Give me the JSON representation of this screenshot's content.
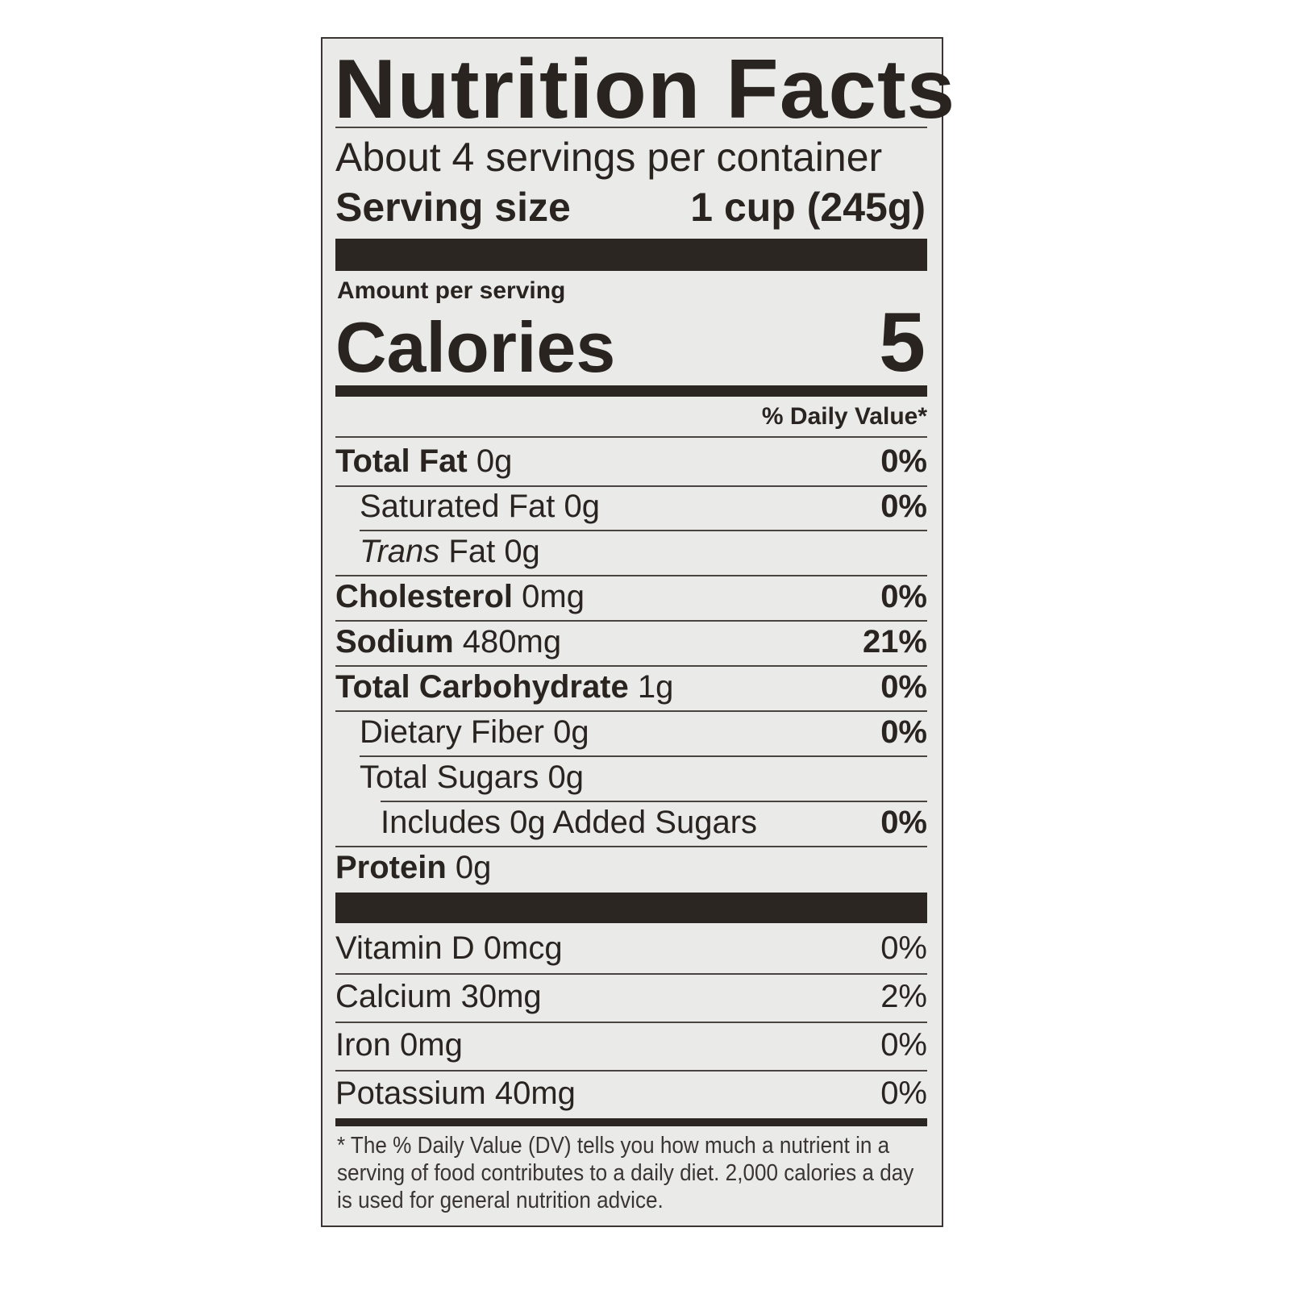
{
  "title": "Nutrition Facts",
  "servings_per_container": "About 4 servings per container",
  "serving_size_label": "Serving size",
  "serving_size_value": "1 cup (245g)",
  "amount_per_serving": "Amount per serving",
  "calories_label": "Calories",
  "calories_value": "5",
  "daily_value_header": "% Daily Value*",
  "nutrients": [
    {
      "name": "Total Fat",
      "amount": "0g",
      "dv": "0%"
    },
    {
      "name": "Saturated Fat",
      "amount": "0g",
      "dv": "0%"
    },
    {
      "name": "Trans",
      "amount": "Fat 0g",
      "dv": ""
    },
    {
      "name": "Cholesterol",
      "amount": "0mg",
      "dv": "0%"
    },
    {
      "name": "Sodium",
      "amount": "480mg",
      "dv": "21%"
    },
    {
      "name": "Total Carbohydrate",
      "amount": "1g",
      "dv": "0%"
    },
    {
      "name": "Dietary Fiber",
      "amount": "0g",
      "dv": "0%"
    },
    {
      "name": "Total Sugars",
      "amount": "0g",
      "dv": ""
    },
    {
      "name": "Includes 0g Added Sugars",
      "amount": "",
      "dv": "0%"
    },
    {
      "name": "Protein",
      "amount": "0g",
      "dv": ""
    }
  ],
  "vitamins": [
    {
      "name": "Vitamin D 0mcg",
      "dv": "0%"
    },
    {
      "name": "Calcium 30mg",
      "dv": "2%"
    },
    {
      "name": "Iron 0mg",
      "dv": "0%"
    },
    {
      "name": "Potassium 40mg",
      "dv": "0%"
    }
  ],
  "footnote": "* The % Daily Value (DV) tells you how much a nutrient in a serving of food contributes to a daily diet. 2,000 calories a day is used for general nutrition advice."
}
